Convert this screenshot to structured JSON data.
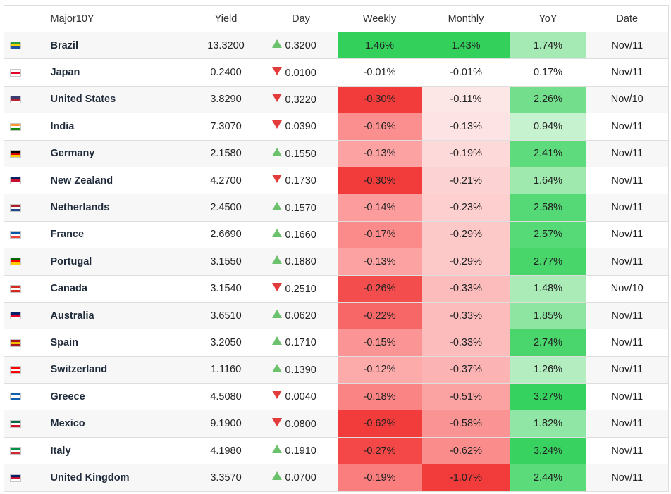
{
  "table": {
    "headers": {
      "country": "Major10Y",
      "yield": "Yield",
      "day": "Day",
      "weekly": "Weekly",
      "monthly": "Monthly",
      "yoy": "YoY",
      "date": "Date"
    },
    "colors": {
      "positive_strong": "#33d15c",
      "negative_strong": "#f23c3c",
      "up_arrow": "#6cc26c",
      "down_arrow": "#e33b3b"
    },
    "rows": [
      {
        "flag": "brazil-flag-icon",
        "flag_colors": [
          "#2a9d3a",
          "#f5d300",
          "#1e4fa0"
        ],
        "country": "Brazil",
        "yield": "13.3200",
        "dir": "up",
        "day": "0.3200",
        "weekly": "1.46%",
        "weekly_bg": "#33d15c",
        "monthly": "1.43%",
        "monthly_bg": "#33d15c",
        "yoy": "1.74%",
        "yoy_bg": "#a5e9b4",
        "date": "Nov/11"
      },
      {
        "flag": "japan-flag-icon",
        "flag_colors": [
          "#ffffff",
          "#e0002a",
          "#ffffff"
        ],
        "country": "Japan",
        "yield": "0.2400",
        "dir": "down",
        "day": "0.0100",
        "weekly": "-0.01%",
        "weekly_bg": "#ffffff",
        "monthly": "-0.01%",
        "monthly_bg": "#ffffff",
        "yoy": "0.17%",
        "yoy_bg": "#ffffff",
        "date": "Nov/11"
      },
      {
        "flag": "united-states-flag-icon",
        "flag_colors": [
          "#3c3b6e",
          "#b22234",
          "#ffffff"
        ],
        "country": "United States",
        "yield": "3.8290",
        "dir": "down",
        "day": "0.3220",
        "weekly": "-0.30%",
        "weekly_bg": "#f23c3c",
        "monthly": "-0.11%",
        "monthly_bg": "#fde6e6",
        "yoy": "2.26%",
        "yoy_bg": "#73df8c",
        "date": "Nov/10"
      },
      {
        "flag": "india-flag-icon",
        "flag_colors": [
          "#ff9933",
          "#ffffff",
          "#138808"
        ],
        "country": "India",
        "yield": "7.3070",
        "dir": "down",
        "day": "0.0390",
        "weekly": "-0.16%",
        "weekly_bg": "#fb8e8e",
        "monthly": "-0.13%",
        "monthly_bg": "#fde3e3",
        "yoy": "0.94%",
        "yoy_bg": "#c6f2cf",
        "date": "Nov/11"
      },
      {
        "flag": "germany-flag-icon",
        "flag_colors": [
          "#000000",
          "#dd0000",
          "#ffce00"
        ],
        "country": "Germany",
        "yield": "2.1580",
        "dir": "up",
        "day": "0.1550",
        "weekly": "-0.13%",
        "weekly_bg": "#fca2a2",
        "monthly": "-0.19%",
        "monthly_bg": "#fdd9d9",
        "yoy": "2.41%",
        "yoy_bg": "#5edb7c",
        "date": "Nov/11"
      },
      {
        "flag": "new-zealand-flag-icon",
        "flag_colors": [
          "#012169",
          "#c8102e",
          "#ffffff"
        ],
        "country": "New Zealand",
        "yield": "4.2700",
        "dir": "down",
        "day": "0.1730",
        "weekly": "-0.30%",
        "weekly_bg": "#f23c3c",
        "monthly": "-0.21%",
        "monthly_bg": "#fdd2d2",
        "yoy": "1.64%",
        "yoy_bg": "#9fe8ae",
        "date": "Nov/11"
      },
      {
        "flag": "netherlands-flag-icon",
        "flag_colors": [
          "#ae1c28",
          "#ffffff",
          "#21468b"
        ],
        "country": "Netherlands",
        "yield": "2.4500",
        "dir": "up",
        "day": "0.1570",
        "weekly": "-0.14%",
        "weekly_bg": "#fc9c9c",
        "monthly": "-0.23%",
        "monthly_bg": "#fdcfcf",
        "yoy": "2.58%",
        "yoy_bg": "#55d976",
        "date": "Nov/11"
      },
      {
        "flag": "france-flag-icon",
        "flag_colors": [
          "#0055a4",
          "#ffffff",
          "#ef4135"
        ],
        "country": "France",
        "yield": "2.6690",
        "dir": "up",
        "day": "0.1660",
        "weekly": "-0.17%",
        "weekly_bg": "#fb8a8a",
        "monthly": "-0.29%",
        "monthly_bg": "#fdc8c8",
        "yoy": "2.57%",
        "yoy_bg": "#56d977",
        "date": "Nov/11"
      },
      {
        "flag": "portugal-flag-icon",
        "flag_colors": [
          "#006600",
          "#ff0000",
          "#ffcc00"
        ],
        "country": "Portugal",
        "yield": "3.1550",
        "dir": "up",
        "day": "0.1880",
        "weekly": "-0.13%",
        "weekly_bg": "#fca2a2",
        "monthly": "-0.29%",
        "monthly_bg": "#fdc8c8",
        "yoy": "2.77%",
        "yoy_bg": "#48d66b",
        "date": "Nov/11"
      },
      {
        "flag": "canada-flag-icon",
        "flag_colors": [
          "#d52b1e",
          "#ffffff",
          "#d52b1e"
        ],
        "country": "Canada",
        "yield": "3.1540",
        "dir": "down",
        "day": "0.2510",
        "weekly": "-0.26%",
        "weekly_bg": "#f44d4d",
        "monthly": "-0.33%",
        "monthly_bg": "#fcbcbc",
        "yoy": "1.48%",
        "yoy_bg": "#aaebb7",
        "date": "Nov/10"
      },
      {
        "flag": "australia-flag-icon",
        "flag_colors": [
          "#012169",
          "#e4002b",
          "#ffffff"
        ],
        "country": "Australia",
        "yield": "3.6510",
        "dir": "up",
        "day": "0.0620",
        "weekly": "-0.22%",
        "weekly_bg": "#f86767",
        "monthly": "-0.33%",
        "monthly_bg": "#fcbcbc",
        "yoy": "1.85%",
        "yoy_bg": "#8de5a1",
        "date": "Nov/11"
      },
      {
        "flag": "spain-flag-icon",
        "flag_colors": [
          "#aa151b",
          "#f1bf00",
          "#aa151b"
        ],
        "country": "Spain",
        "yield": "3.2050",
        "dir": "up",
        "day": "0.1710",
        "weekly": "-0.15%",
        "weekly_bg": "#fb9494",
        "monthly": "-0.33%",
        "monthly_bg": "#fcbcbc",
        "yoy": "2.74%",
        "yoy_bg": "#4ad66c",
        "date": "Nov/11"
      },
      {
        "flag": "switzerland-flag-icon",
        "flag_colors": [
          "#ff0000",
          "#ffffff",
          "#ff0000"
        ],
        "country": "Switzerland",
        "yield": "1.1160",
        "dir": "up",
        "day": "0.1390",
        "weekly": "-0.12%",
        "weekly_bg": "#fcaaaa",
        "monthly": "-0.37%",
        "monthly_bg": "#fcb3b3",
        "yoy": "1.26%",
        "yoy_bg": "#b4edc0",
        "date": "Nov/11"
      },
      {
        "flag": "greece-flag-icon",
        "flag_colors": [
          "#0d5eaf",
          "#ffffff",
          "#0d5eaf"
        ],
        "country": "Greece",
        "yield": "4.5080",
        "dir": "down",
        "day": "0.0040",
        "weekly": "-0.18%",
        "weekly_bg": "#fa8383",
        "monthly": "-0.51%",
        "monthly_bg": "#fba2a2",
        "yoy": "3.27%",
        "yoy_bg": "#36d25f",
        "date": "Nov/11"
      },
      {
        "flag": "mexico-flag-icon",
        "flag_colors": [
          "#006847",
          "#ffffff",
          "#ce1126"
        ],
        "country": "Mexico",
        "yield": "9.1900",
        "dir": "down",
        "day": "0.0800",
        "weekly": "-0.62%",
        "weekly_bg": "#f23c3c",
        "monthly": "-0.58%",
        "monthly_bg": "#fa9494",
        "yoy": "1.82%",
        "yoy_bg": "#90e6a4",
        "date": "Nov/11"
      },
      {
        "flag": "italy-flag-icon",
        "flag_colors": [
          "#009246",
          "#ffffff",
          "#ce2b37"
        ],
        "country": "Italy",
        "yield": "4.1980",
        "dir": "up",
        "day": "0.1910",
        "weekly": "-0.27%",
        "weekly_bg": "#f44848",
        "monthly": "-0.62%",
        "monthly_bg": "#fa8c8c",
        "yoy": "3.24%",
        "yoy_bg": "#38d260",
        "date": "Nov/11"
      },
      {
        "flag": "united-kingdom-flag-icon",
        "flag_colors": [
          "#012169",
          "#c8102e",
          "#ffffff"
        ],
        "country": "United Kingdom",
        "yield": "3.3570",
        "dir": "up",
        "day": "0.0700",
        "weekly": "-0.19%",
        "weekly_bg": "#fa7e7e",
        "monthly": "-1.07%",
        "monthly_bg": "#f23c3c",
        "yoy": "2.44%",
        "yoy_bg": "#5cdb7b",
        "date": "Nov/11"
      }
    ]
  }
}
